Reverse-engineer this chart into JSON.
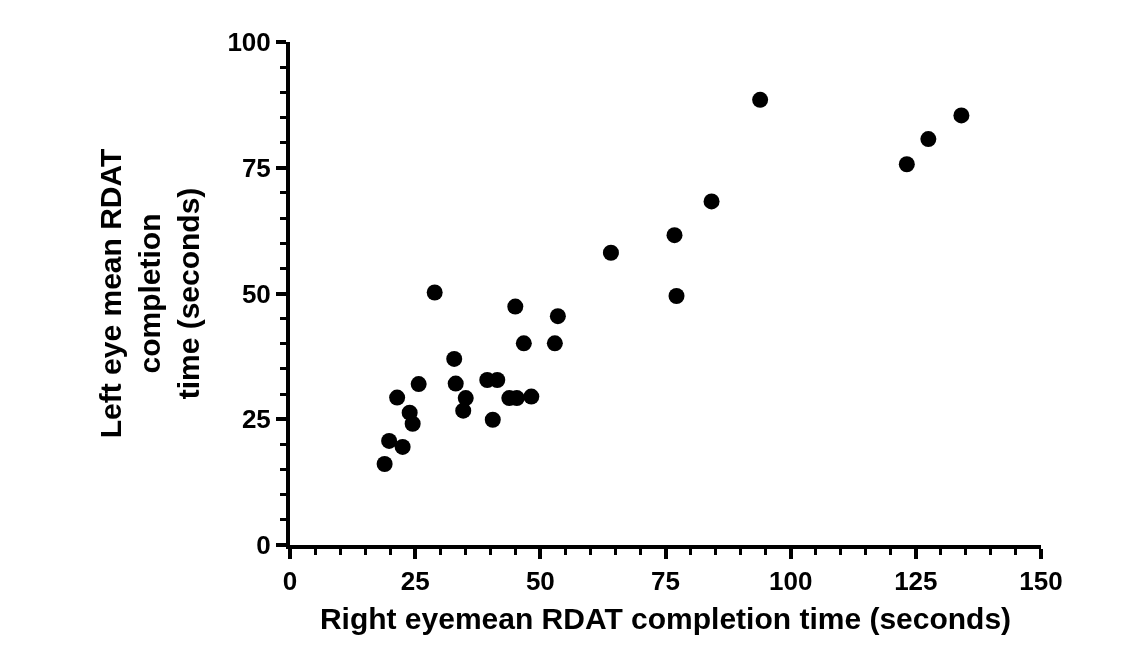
{
  "chart_data": {
    "type": "scatter",
    "xlabel": "Right eyemean RDAT completion time (seconds)",
    "ylabel": "Left eye mean RDAT\ncompletion\ntime (seconds)",
    "x": [
      18.9,
      19.8,
      22.5,
      21.4,
      23.9,
      24.5,
      25.7,
      28.9,
      32.8,
      33.1,
      35.1,
      34.6,
      39.4,
      41.4,
      40.5,
      43.8,
      45.3,
      48.2,
      45.0,
      46.7,
      52.9,
      53.5,
      64.1,
      76.8,
      77.2,
      84.2,
      93.9,
      123.2,
      127.5,
      134.1
    ],
    "values": [
      16.1,
      20.7,
      19.5,
      29.3,
      26.3,
      24.1,
      32.0,
      50.2,
      37.0,
      32.1,
      29.2,
      26.7,
      32.8,
      32.8,
      24.9,
      29.2,
      29.2,
      29.5,
      47.4,
      40.1,
      40.1,
      45.5,
      58.1,
      61.6,
      49.5,
      68.3,
      88.5,
      75.7,
      80.7,
      85.4
    ],
    "color": "#000000",
    "marker": "circle",
    "xlim": [
      0,
      150
    ],
    "xticks": [
      0,
      25,
      50,
      75,
      100,
      125,
      150
    ],
    "ylim": [
      0,
      100
    ],
    "yticks": [
      0,
      25,
      50,
      75,
      100
    ],
    "legend": false
  }
}
